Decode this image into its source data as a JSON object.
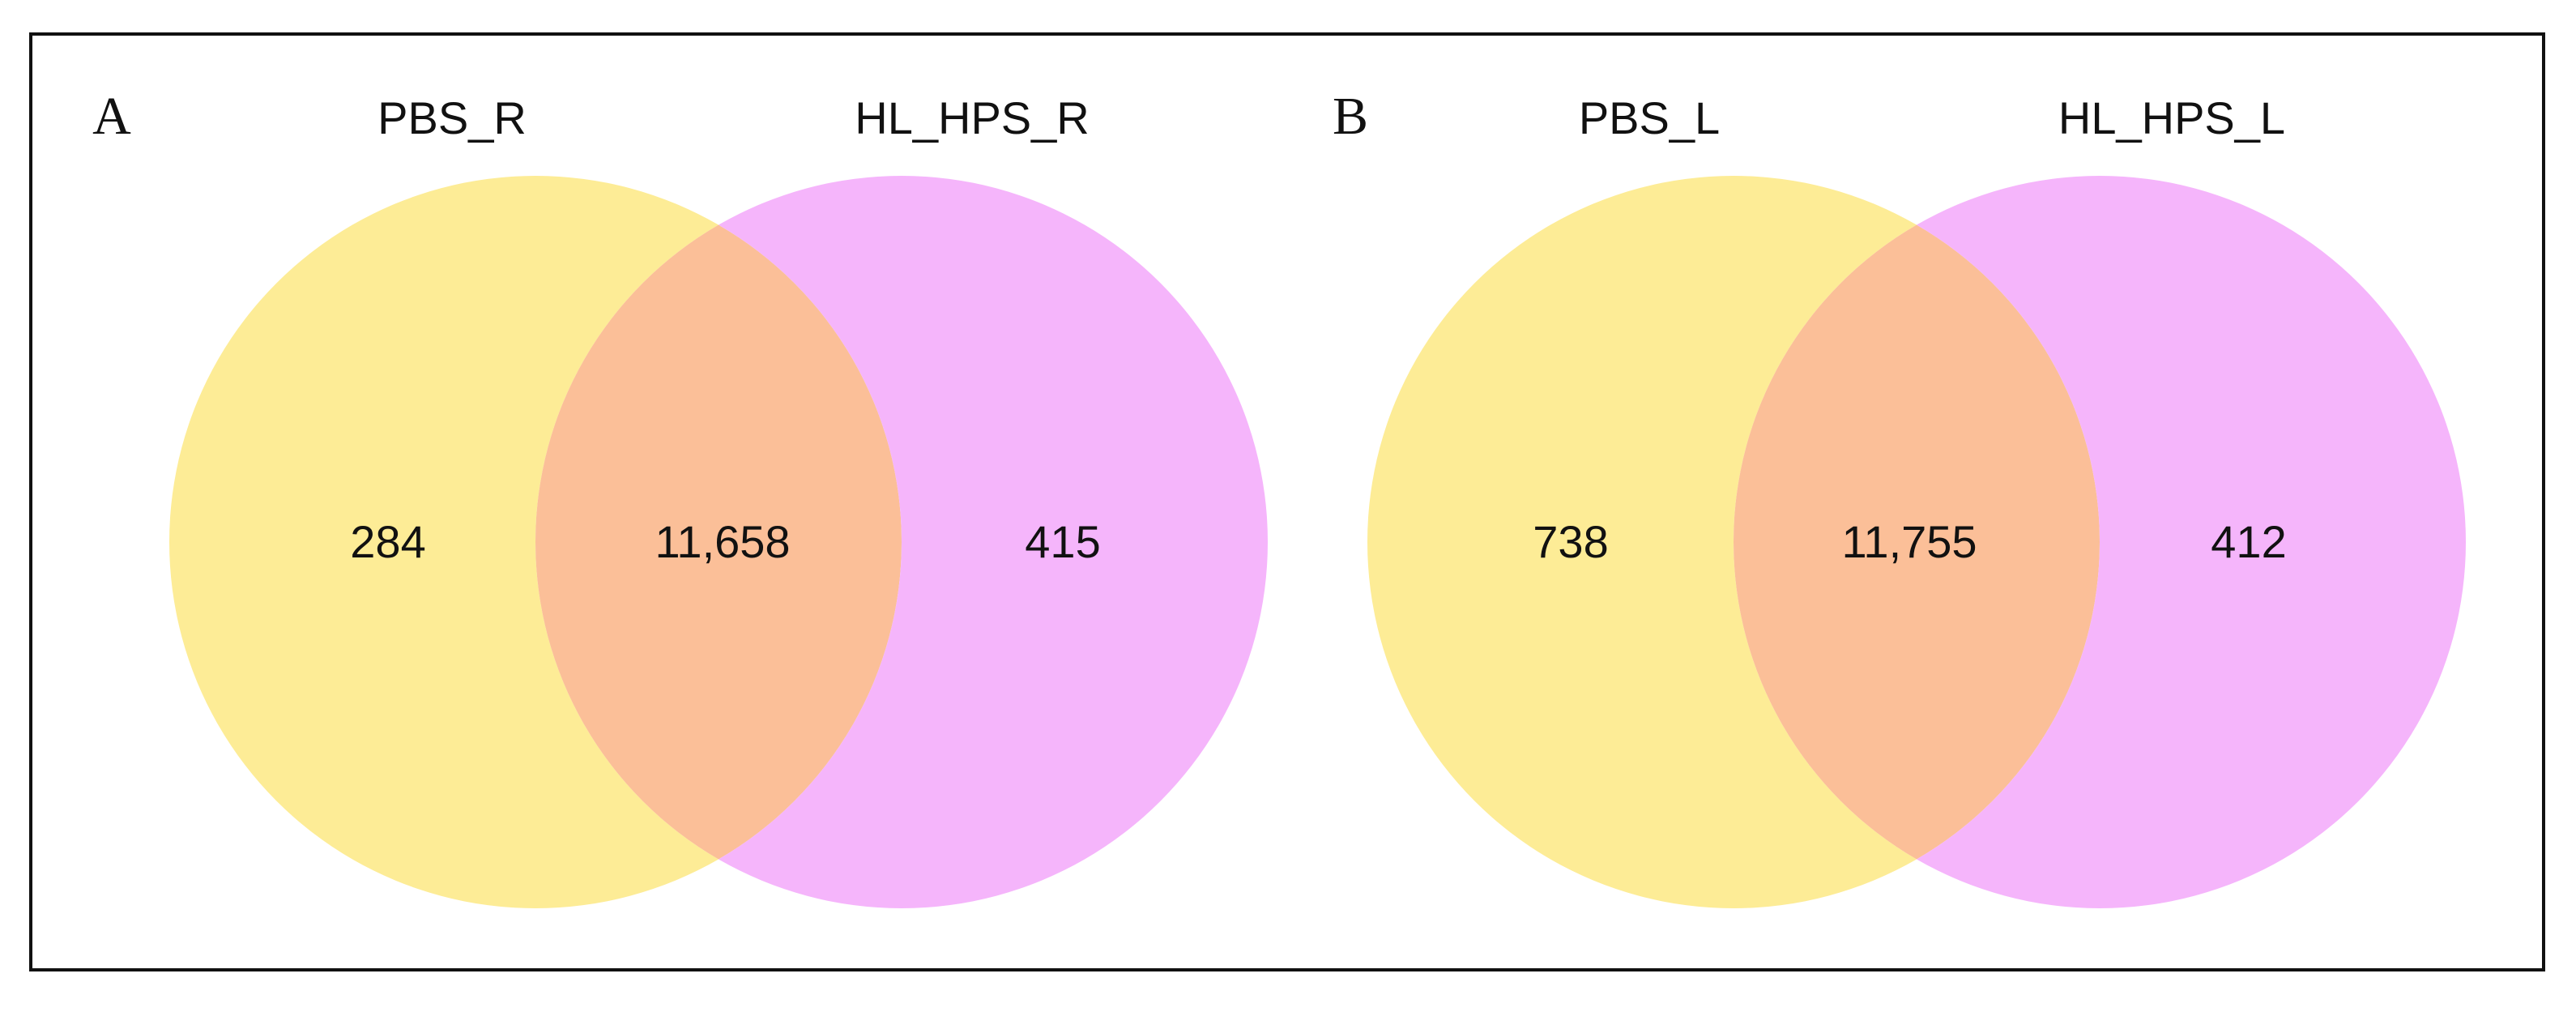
{
  "chart_data": [
    {
      "type": "venn",
      "panel": "A",
      "sets": [
        {
          "name": "PBS_R",
          "color": "#fdec96"
        },
        {
          "name": "HL_HPS_R",
          "color": "#f5b5fb"
        }
      ],
      "overlap_color": "#fbbf98",
      "values": [
        284,
        11658,
        415
      ],
      "value_labels": [
        "284",
        "11,658",
        "415"
      ]
    },
    {
      "type": "venn",
      "panel": "B",
      "sets": [
        {
          "name": "PBS_L",
          "color": "#fdec96"
        },
        {
          "name": "HL_HPS_L",
          "color": "#f5b5fb"
        }
      ],
      "overlap_color": "#fbbf98",
      "values": [
        738,
        11755,
        412
      ],
      "value_labels": [
        "738",
        "11,755",
        "412"
      ]
    }
  ]
}
